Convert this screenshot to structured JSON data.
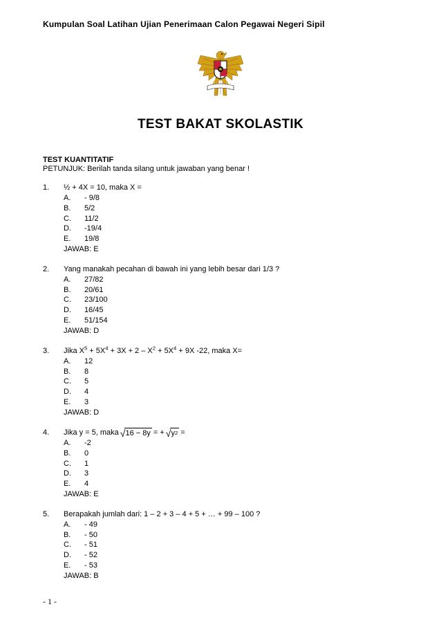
{
  "header": {
    "top_title": "Kumpulan Soal Latihan Ujian Penerimaan Calon Pegawai Negeri Sipil"
  },
  "main_title": "TEST BAKAT SKOLASTIK",
  "section_title": "TEST KUANTITATIF",
  "instruction": "PETUNJUK: Berilah tanda silang untuk jawaban yang benar !",
  "questions": [
    {
      "num": "1.",
      "text": "½ + 4X = 10, maka X =",
      "options": [
        {
          "letter": "A.",
          "text": "- 9/8"
        },
        {
          "letter": "B.",
          "text": "5/2"
        },
        {
          "letter": "C.",
          "text": "11/2"
        },
        {
          "letter": "D.",
          "text": "-19/4"
        },
        {
          "letter": "E.",
          "text": "19/8"
        }
      ],
      "answer": "JAWAB: E"
    },
    {
      "num": "2.",
      "text": "Yang manakah pecahan di bawah ini yang lebih besar dari 1/3 ?",
      "options": [
        {
          "letter": "A.",
          "text": "27/82"
        },
        {
          "letter": "B.",
          "text": "20/61"
        },
        {
          "letter": "C.",
          "text": "23/100"
        },
        {
          "letter": "D.",
          "text": "16/45"
        },
        {
          "letter": "E.",
          "text": "51/154"
        }
      ],
      "answer": "JAWAB: D"
    },
    {
      "num": "3.",
      "text_html": "Jika X<sup>5</sup> + 5X<sup>4</sup> + 3X + 2 – X<sup>2</sup> + 5X<sup>4</sup> + 9X -22, maka X=",
      "options": [
        {
          "letter": "A.",
          "text": "12"
        },
        {
          "letter": "B.",
          "text": "8"
        },
        {
          "letter": "C.",
          "text": "5"
        },
        {
          "letter": "D.",
          "text": "4"
        },
        {
          "letter": "E.",
          "text": "3"
        }
      ],
      "answer": "JAWAB: D"
    },
    {
      "num": "4.",
      "math": {
        "prefix": "Jika y = 5, maka ",
        "rad1": "16 − 8y",
        "mid": " = +",
        "rad2_html": "y<sup>2</sup>",
        "suffix": " ="
      },
      "options": [
        {
          "letter": "A.",
          "text": "-2"
        },
        {
          "letter": "B.",
          "text": "0"
        },
        {
          "letter": "C.",
          "text": "1"
        },
        {
          "letter": "D.",
          "text": "3"
        },
        {
          "letter": "E.",
          "text": "4"
        }
      ],
      "answer": "JAWAB: E"
    },
    {
      "num": "5.",
      "text": "Berapakah jumlah dari: 1 – 2 + 3 – 4 + 5 + … + 99 – 100 ?",
      "options": [
        {
          "letter": "A.",
          "text": "- 49"
        },
        {
          "letter": "B.",
          "text": "- 50"
        },
        {
          "letter": "C.",
          "text": "- 51"
        },
        {
          "letter": "D.",
          "text": "- 52"
        },
        {
          "letter": "E.",
          "text": "- 53"
        }
      ],
      "answer": "JAWAB: B"
    }
  ],
  "footer": "- 1 -",
  "emblem": {
    "gold": "#d4a017",
    "red": "#c41e3a",
    "white": "#ffffff",
    "black": "#000000"
  }
}
